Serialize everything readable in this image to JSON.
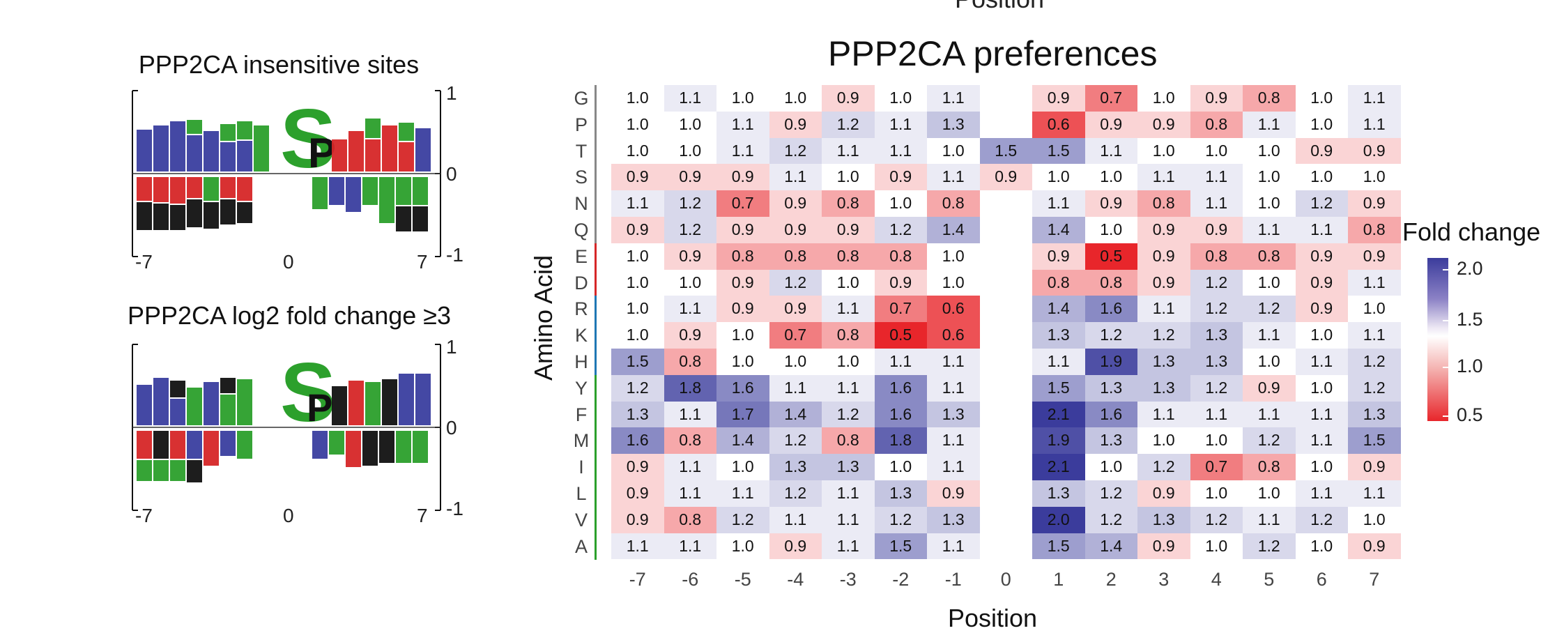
{
  "cut_top_label": "Position",
  "logos": [
    {
      "title": "PPP2CA insensitive sites",
      "x_ticks": [
        "-7",
        "0",
        "7"
      ],
      "y_ticks": [
        "1",
        "0",
        "-1"
      ],
      "center_residue": "S",
      "flank_residue": "P"
    },
    {
      "title": "PPP2CA log2 fold change ≥3",
      "x_ticks": [
        "-7",
        "0",
        "7"
      ],
      "y_ticks": [
        "1",
        "0",
        "-1"
      ],
      "center_residue": "S",
      "flank_residue": "P"
    }
  ],
  "chart_data": {
    "type": "heatmap",
    "title": "PPP2CA preferences",
    "xlabel": "Position",
    "ylabel": "Amino Acid",
    "x_labels": [
      "-7",
      "-6",
      "-5",
      "-4",
      "-3",
      "-2",
      "-1",
      "0",
      "1",
      "2",
      "3",
      "4",
      "5",
      "6",
      "7"
    ],
    "y_labels": [
      "G",
      "P",
      "T",
      "S",
      "N",
      "Q",
      "E",
      "D",
      "R",
      "K",
      "H",
      "Y",
      "F",
      "M",
      "I",
      "L",
      "V",
      "A"
    ],
    "group_colors": {
      "gray": "#888888",
      "red": "#d62728",
      "blue": "#1f77b4",
      "green": "#2ca02c"
    },
    "row_groups": [
      "gray",
      "gray",
      "gray",
      "gray",
      "gray",
      "gray",
      "red",
      "red",
      "blue",
      "blue",
      "blue",
      "green",
      "green",
      "green",
      "green",
      "green",
      "green",
      "green"
    ],
    "values": [
      [
        1.0,
        1.1,
        1.0,
        1.0,
        0.9,
        1.0,
        1.1,
        null,
        0.9,
        0.7,
        1.0,
        0.9,
        0.8,
        1.0,
        1.1
      ],
      [
        1.0,
        1.0,
        1.1,
        0.9,
        1.2,
        1.1,
        1.3,
        null,
        0.6,
        0.9,
        0.9,
        0.8,
        1.1,
        1.0,
        1.1
      ],
      [
        1.0,
        1.0,
        1.1,
        1.2,
        1.1,
        1.1,
        1.0,
        1.5,
        1.5,
        1.1,
        1.0,
        1.0,
        1.0,
        0.9,
        0.9
      ],
      [
        0.9,
        0.9,
        0.9,
        1.1,
        1.0,
        0.9,
        1.1,
        0.9,
        1.0,
        1.0,
        1.1,
        1.1,
        1.0,
        1.0,
        1.0
      ],
      [
        1.1,
        1.2,
        0.7,
        0.9,
        0.8,
        1.0,
        0.8,
        null,
        1.1,
        0.9,
        0.8,
        1.1,
        1.0,
        1.2,
        0.9
      ],
      [
        0.9,
        1.2,
        0.9,
        0.9,
        0.9,
        1.2,
        1.4,
        null,
        1.4,
        1.0,
        0.9,
        0.9,
        1.1,
        1.1,
        0.8
      ],
      [
        1.0,
        0.9,
        0.8,
        0.8,
        0.8,
        0.8,
        1.0,
        null,
        0.9,
        0.5,
        0.9,
        0.8,
        0.8,
        0.9,
        0.9
      ],
      [
        1.0,
        1.0,
        0.9,
        1.2,
        1.0,
        0.9,
        1.0,
        null,
        0.8,
        0.8,
        0.9,
        1.2,
        1.0,
        0.9,
        1.1
      ],
      [
        1.0,
        1.1,
        0.9,
        0.9,
        1.1,
        0.7,
        0.6,
        null,
        1.4,
        1.6,
        1.1,
        1.2,
        1.2,
        0.9,
        1.0
      ],
      [
        1.0,
        0.9,
        1.0,
        0.7,
        0.8,
        0.5,
        0.6,
        null,
        1.3,
        1.2,
        1.2,
        1.3,
        1.1,
        1.0,
        1.1
      ],
      [
        1.5,
        0.8,
        1.0,
        1.0,
        1.0,
        1.1,
        1.1,
        null,
        1.1,
        1.9,
        1.3,
        1.3,
        1.0,
        1.1,
        1.2
      ],
      [
        1.2,
        1.8,
        1.6,
        1.1,
        1.1,
        1.6,
        1.1,
        null,
        1.5,
        1.3,
        1.3,
        1.2,
        0.9,
        1.0,
        1.2
      ],
      [
        1.3,
        1.1,
        1.7,
        1.4,
        1.2,
        1.6,
        1.3,
        null,
        2.1,
        1.6,
        1.1,
        1.1,
        1.1,
        1.1,
        1.3
      ],
      [
        1.6,
        0.8,
        1.4,
        1.2,
        0.8,
        1.8,
        1.1,
        null,
        1.9,
        1.3,
        1.0,
        1.0,
        1.2,
        1.1,
        1.5
      ],
      [
        0.9,
        1.1,
        1.0,
        1.3,
        1.3,
        1.0,
        1.1,
        null,
        2.1,
        1.0,
        1.2,
        0.7,
        0.8,
        1.0,
        0.9
      ],
      [
        0.9,
        1.1,
        1.1,
        1.2,
        1.1,
        1.3,
        0.9,
        null,
        1.3,
        1.2,
        0.9,
        1.0,
        1.0,
        1.1,
        1.1
      ],
      [
        0.9,
        0.8,
        1.2,
        1.1,
        1.1,
        1.2,
        1.3,
        null,
        2.0,
        1.2,
        1.3,
        1.2,
        1.1,
        1.2,
        1.0
      ],
      [
        1.1,
        1.1,
        1.0,
        0.9,
        1.1,
        1.5,
        1.1,
        null,
        1.5,
        1.4,
        0.9,
        1.0,
        1.2,
        1.0,
        0.9
      ]
    ],
    "legend": {
      "title": "Fold change",
      "ticks": [
        "2.0",
        "1.5",
        "1.0",
        "0.5"
      ],
      "range": [
        0.5,
        2.0
      ],
      "low_color": "#e8262b",
      "mid_color": "#ffffff",
      "high_color": "#3b3c9c"
    }
  }
}
